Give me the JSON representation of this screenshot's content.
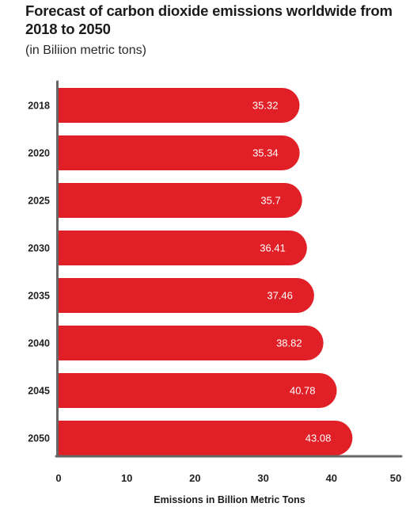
{
  "header": {
    "title": "Forecast of carbon dioxide emissions worldwide from 2018 to 2050",
    "subtitle": "(in Biliion metric tons)"
  },
  "chart_data": {
    "type": "bar",
    "orientation": "horizontal",
    "title": "Forecast of carbon dioxide emissions worldwide from 2018 to 2050",
    "subtitle": "(in Biliion metric tons)",
    "categories": [
      "2018",
      "2020",
      "2025",
      "2030",
      "2035",
      "2040",
      "2045",
      "2050"
    ],
    "values": [
      35.32,
      35.34,
      35.7,
      36.41,
      37.46,
      38.82,
      40.78,
      43.08
    ],
    "value_labels": [
      "35.32",
      "35.34",
      "35.7",
      "36.41",
      "37.46",
      "38.82",
      "40.78",
      "43.08"
    ],
    "xlabel": "Emissions in Billion Metric Tons",
    "ylabel": "",
    "xlim": [
      0,
      50
    ],
    "xticks": [
      0,
      10,
      20,
      30,
      40,
      50
    ],
    "grid": false,
    "colors": {
      "bar": "#e02026",
      "axis": "#666666"
    }
  }
}
